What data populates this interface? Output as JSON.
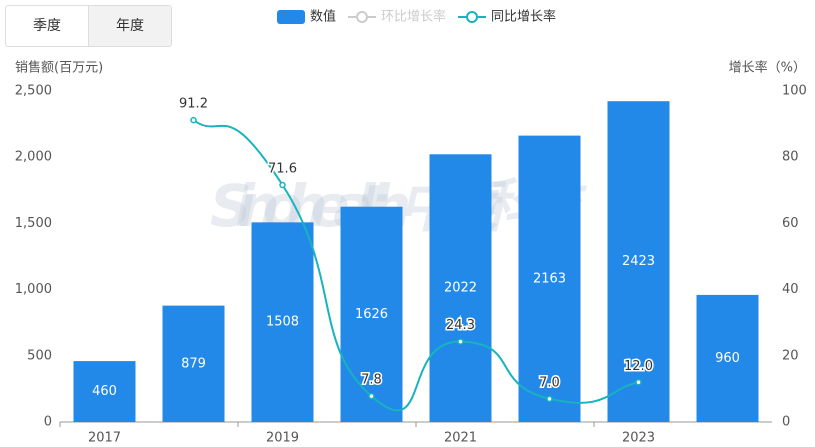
{
  "tabs": [
    "季度",
    "年度"
  ],
  "chart_data": {
    "type": "bar-line",
    "y_label": "销售额(百万元)",
    "y2_label": "增长率（%）",
    "watermark": "Sinohealth 中康科技",
    "categories": [
      "2017",
      null,
      "2019",
      null,
      "2021",
      null,
      "2023",
      null
    ],
    "series": [
      {
        "name": "数值",
        "color": "#2389e8",
        "kind": "bar",
        "values": [
          460,
          879,
          1508,
          1626,
          2022,
          2163,
          2423,
          960
        ]
      },
      {
        "name": "环比增长率",
        "color": "#cccccc",
        "kind": "line",
        "axis": "y2",
        "visible": false,
        "values": [
          null,
          null,
          null,
          null,
          null,
          null,
          null,
          null
        ]
      },
      {
        "name": "同比增长率",
        "color": "#17b3bf",
        "kind": "line",
        "axis": "y2",
        "values": [
          null,
          91.2,
          71.6,
          7.8,
          24.3,
          7,
          12,
          null
        ],
        "value_labels": [
          null,
          "91.2",
          "71.6",
          "7.8",
          "24.3",
          "7.0",
          "12.0",
          null
        ]
      }
    ],
    "ylim": [
      0,
      2500
    ],
    "yticks": [
      0,
      500,
      {
        "value": 1000,
        "label": "1,000"
      },
      {
        "value": 1500,
        "label": "1,500"
      },
      {
        "value": 2000,
        "label": "2,000"
      },
      {
        "value": 2500,
        "label": "2,500"
      }
    ],
    "y2lim": [
      0,
      100
    ],
    "y2ticks": [
      0,
      20,
      40,
      60,
      80,
      100
    ]
  }
}
